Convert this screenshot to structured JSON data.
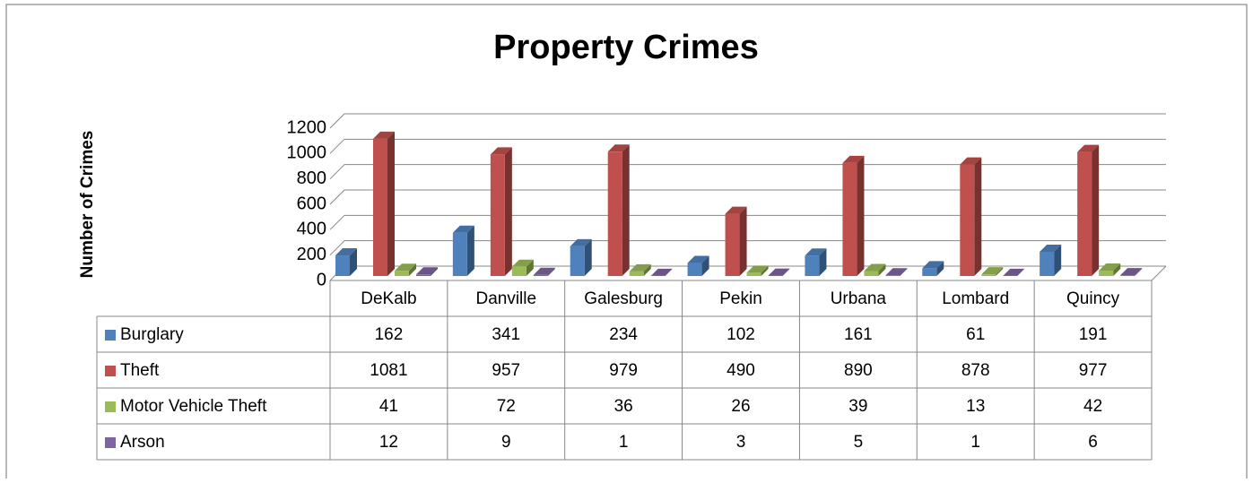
{
  "chart_data": {
    "type": "bar3d",
    "title": "Property Crimes",
    "y_label": "Number of Crimes",
    "categories": [
      "DeKalb",
      "Danville",
      "Galesburg",
      "Pekin",
      "Urbana",
      "Lombard",
      "Quincy"
    ],
    "series": [
      {
        "name": "Burglary",
        "color": "#4f81bd",
        "values": [
          162,
          341,
          234,
          102,
          161,
          61,
          191
        ]
      },
      {
        "name": "Theft",
        "color": "#c0504d",
        "values": [
          1081,
          957,
          979,
          490,
          890,
          878,
          977
        ]
      },
      {
        "name": "Motor Vehicle Theft",
        "color": "#9bbb59",
        "values": [
          41,
          72,
          36,
          26,
          39,
          13,
          42
        ]
      },
      {
        "name": "Arson",
        "color": "#8064a2",
        "values": [
          12,
          9,
          1,
          3,
          5,
          1,
          6
        ]
      }
    ],
    "ylim": [
      0,
      1200
    ],
    "yticks": [
      0,
      200,
      400,
      600,
      800,
      1000,
      1200
    ],
    "grid": true,
    "data_table": true
  }
}
